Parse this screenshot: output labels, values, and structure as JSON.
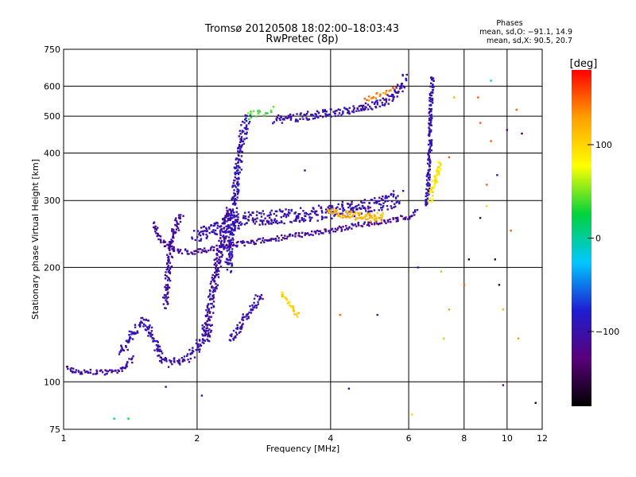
{
  "header": {
    "title_line1": "Tromsø 20120508 18:02:00–18:03:43",
    "title_line2": "RwPretec (8p)"
  },
  "phases": {
    "heading": "Phases",
    "line_o": "mean, sd,O: −91.1, 14.9",
    "line_x": "mean, sd,X:  90.5, 20.7"
  },
  "colorbar": {
    "unit_label": "[deg]",
    "min": -180,
    "max": 180,
    "ticks": [
      {
        "value": 100,
        "label": "100"
      },
      {
        "value": 0,
        "label": "0"
      },
      {
        "value": -100,
        "label": "−100"
      }
    ],
    "stops": [
      "#000000",
      "#5a007a",
      "#1e1ed2",
      "#00c8ff",
      "#00d23c",
      "#ffff00",
      "#ffa000",
      "#ff0000"
    ]
  },
  "chart_data": {
    "type": "scatter",
    "title": "Tromsø 20120508 18:02:00–18:03:43",
    "subtitle": "RwPretec (8p)",
    "xlabel": "Frequency [MHz]",
    "ylabel": "Stationary phase Virtual Height [km]",
    "xscale": "log",
    "yscale": "log",
    "xlim": [
      1,
      12
    ],
    "ylim": [
      75,
      750
    ],
    "grid": true,
    "x_ticks": [
      {
        "value": 1,
        "label": "1",
        "grid": false
      },
      {
        "value": 2,
        "label": "2",
        "grid": true
      },
      {
        "value": 4,
        "label": "4",
        "grid": true
      },
      {
        "value": 6,
        "label": "6",
        "grid": true
      },
      {
        "value": 8,
        "label": "8",
        "grid": true
      },
      {
        "value": 10,
        "label": "10",
        "grid": true
      },
      {
        "value": 12,
        "label": "12",
        "grid": false
      }
    ],
    "y_ticks": [
      {
        "value": 75,
        "label": "75",
        "grid": false
      },
      {
        "value": 100,
        "label": "100",
        "grid": true
      },
      {
        "value": 200,
        "label": "200",
        "grid": true
      },
      {
        "value": 300,
        "label": "300",
        "grid": true
      },
      {
        "value": 400,
        "label": "400",
        "grid": true
      },
      {
        "value": 500,
        "label": "500",
        "grid": true
      },
      {
        "value": 600,
        "label": "600",
        "grid": true
      },
      {
        "value": 750,
        "label": "750",
        "grid": false
      }
    ],
    "traces": [
      {
        "phase": -105,
        "spread": 0.03,
        "n": 3,
        "points": [
          [
            1.0,
            110
          ],
          [
            1.05,
            107
          ],
          [
            1.1,
            106
          ],
          [
            1.2,
            106
          ],
          [
            1.3,
            106
          ],
          [
            1.35,
            107
          ],
          [
            1.4,
            112
          ],
          [
            1.45,
            118
          ]
        ]
      },
      {
        "phase": -100,
        "spread": 0.05,
        "n": 4,
        "points": [
          [
            1.35,
            120
          ],
          [
            1.4,
            128
          ],
          [
            1.45,
            138
          ],
          [
            1.5,
            145
          ],
          [
            1.55,
            140
          ],
          [
            1.6,
            128
          ],
          [
            1.65,
            118
          ],
          [
            1.7,
            112
          ],
          [
            1.8,
            113
          ],
          [
            1.9,
            115
          ],
          [
            2.0,
            122
          ],
          [
            2.1,
            140
          ]
        ]
      },
      {
        "phase": -110,
        "spread": 0.03,
        "n": 3,
        "points": [
          [
            1.6,
            260
          ],
          [
            1.65,
            240
          ],
          [
            1.7,
            228
          ],
          [
            1.8,
            222
          ],
          [
            1.9,
            220
          ],
          [
            2.0,
            220
          ],
          [
            2.1,
            222
          ],
          [
            2.2,
            226
          ],
          [
            2.4,
            229
          ],
          [
            2.6,
            232
          ],
          [
            3.0,
            238
          ],
          [
            3.5,
            245
          ],
          [
            4.0,
            250
          ],
          [
            4.5,
            257
          ],
          [
            5.0,
            262
          ],
          [
            5.5,
            266
          ],
          [
            6.0,
            272
          ],
          [
            6.3,
            285
          ]
        ]
      },
      {
        "phase": -100,
        "spread": 0.09,
        "n": 6,
        "points": [
          [
            2.0,
            240
          ],
          [
            2.2,
            255
          ],
          [
            2.4,
            262
          ],
          [
            2.6,
            268
          ],
          [
            3.0,
            272
          ],
          [
            3.5,
            275
          ],
          [
            4.0,
            280
          ],
          [
            4.5,
            286
          ],
          [
            5.0,
            292
          ],
          [
            5.5,
            300
          ],
          [
            5.8,
            308
          ]
        ]
      },
      {
        "phase": -100,
        "spread": 0.05,
        "n": 4,
        "points": [
          [
            3.0,
            490
          ],
          [
            3.5,
            500
          ],
          [
            4.0,
            510
          ],
          [
            4.5,
            520
          ],
          [
            5.0,
            535
          ],
          [
            5.5,
            560
          ],
          [
            5.8,
            600
          ],
          [
            5.9,
            640
          ]
        ]
      },
      {
        "phase": -95,
        "spread": 0.06,
        "n": 5,
        "points": [
          [
            2.35,
            200
          ],
          [
            2.4,
            260
          ],
          [
            2.45,
            330
          ],
          [
            2.5,
            400
          ],
          [
            2.55,
            460
          ],
          [
            2.6,
            500
          ]
        ]
      },
      {
        "phase": -105,
        "spread": 0.06,
        "n": 5,
        "points": [
          [
            2.1,
            130
          ],
          [
            2.15,
            160
          ],
          [
            2.2,
            190
          ],
          [
            2.25,
            220
          ],
          [
            2.3,
            250
          ],
          [
            2.35,
            290
          ]
        ]
      },
      {
        "phase": -105,
        "spread": 0.05,
        "n": 4,
        "points": [
          [
            1.7,
            160
          ],
          [
            1.72,
            190
          ],
          [
            1.75,
            230
          ],
          [
            1.8,
            260
          ],
          [
            1.85,
            280
          ]
        ]
      },
      {
        "phase": -100,
        "spread": 0.05,
        "n": 4,
        "points": [
          [
            2.4,
            130
          ],
          [
            2.5,
            140
          ],
          [
            2.6,
            150
          ],
          [
            2.7,
            160
          ],
          [
            2.8,
            170
          ]
        ]
      },
      {
        "phase": -95,
        "spread": 0.03,
        "n": 4,
        "points": [
          [
            6.6,
            290
          ],
          [
            6.65,
            350
          ],
          [
            6.7,
            420
          ],
          [
            6.72,
            500
          ],
          [
            6.75,
            560
          ],
          [
            6.8,
            640
          ]
        ]
      },
      {
        "phase": 90,
        "spread": 0.04,
        "n": 4,
        "points": [
          [
            6.7,
            300
          ],
          [
            6.8,
            320
          ],
          [
            6.9,
            340
          ],
          [
            7.0,
            360
          ],
          [
            7.1,
            380
          ]
        ]
      },
      {
        "phase": 120,
        "spread": 0.05,
        "n": 5,
        "points": [
          [
            4.0,
            280
          ],
          [
            4.3,
            276
          ],
          [
            4.6,
            272
          ],
          [
            4.9,
            270
          ],
          [
            5.3,
            272
          ]
        ]
      },
      {
        "phase": 100,
        "spread": 0.03,
        "n": 3,
        "points": [
          [
            3.1,
            172
          ],
          [
            3.2,
            163
          ],
          [
            3.3,
            155
          ],
          [
            3.4,
            148
          ]
        ]
      },
      {
        "phase": 40,
        "spread": 0.05,
        "n": 2,
        "points": [
          [
            2.6,
            500
          ],
          [
            2.8,
            510
          ],
          [
            3.0,
            525
          ]
        ]
      },
      {
        "phase": 140,
        "spread": 0.03,
        "n": 2,
        "points": [
          [
            4.8,
            555
          ],
          [
            5.2,
            570
          ],
          [
            5.6,
            590
          ]
        ]
      }
    ],
    "scatter": [
      [
        9.2,
        620,
        -20
      ],
      [
        10.5,
        520,
        150
      ],
      [
        8.6,
        560,
        150
      ],
      [
        10.8,
        450,
        -150
      ],
      [
        9.5,
        350,
        -100
      ],
      [
        9.0,
        290,
        100
      ],
      [
        10.2,
        250,
        150
      ],
      [
        9.4,
        210,
        -160
      ],
      [
        9.6,
        180,
        -150
      ],
      [
        8.2,
        210,
        -160
      ],
      [
        9.8,
        155,
        120
      ],
      [
        10.6,
        130,
        130
      ],
      [
        9.8,
        98,
        -130
      ],
      [
        11.6,
        88,
        -160
      ],
      [
        4.4,
        96,
        -110
      ],
      [
        1.3,
        80,
        10
      ],
      [
        1.4,
        80,
        20
      ],
      [
        1.7,
        97,
        -110
      ],
      [
        2.05,
        92,
        -110
      ],
      [
        5.1,
        150,
        -100
      ],
      [
        7.4,
        155,
        130
      ],
      [
        4.2,
        150,
        150
      ],
      [
        6.3,
        200,
        -80
      ],
      [
        7.1,
        195,
        50
      ],
      [
        8.0,
        180,
        150
      ],
      [
        9.0,
        330,
        150
      ],
      [
        8.7,
        270,
        -150
      ],
      [
        10.0,
        460,
        -120
      ],
      [
        9.2,
        430,
        150
      ],
      [
        7.4,
        390,
        150
      ],
      [
        8.7,
        480,
        150
      ],
      [
        7.6,
        560,
        120
      ],
      [
        6.1,
        82,
        100
      ],
      [
        7.2,
        130,
        60
      ],
      [
        3.5,
        360,
        -110
      ]
    ]
  }
}
